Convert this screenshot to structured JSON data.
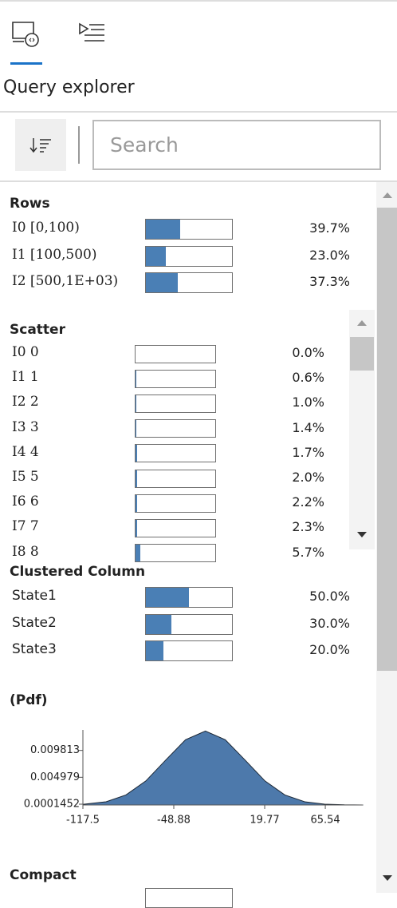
{
  "header": {
    "title": "Query explorer"
  },
  "search": {
    "placeholder": "Search"
  },
  "sections": [
    {
      "title": "Rows",
      "items": [
        {
          "label": "I0 [0,100)",
          "value": 39.7,
          "value_label": "39.7%"
        },
        {
          "label": "I1 [100,500)",
          "value": 23.0,
          "value_label": "23.0%"
        },
        {
          "label": "I2 [500,1E+03)",
          "value": 37.3,
          "value_label": "37.3%"
        }
      ]
    },
    {
      "title": "Scatter",
      "items": [
        {
          "label": "I0 0",
          "value": 0.0,
          "value_label": "0.0%"
        },
        {
          "label": "I1 1",
          "value": 0.6,
          "value_label": "0.6%"
        },
        {
          "label": "I2 2",
          "value": 1.0,
          "value_label": "1.0%"
        },
        {
          "label": "I3 3",
          "value": 1.4,
          "value_label": "1.4%"
        },
        {
          "label": "I4 4",
          "value": 1.7,
          "value_label": "1.7%"
        },
        {
          "label": "I5 5",
          "value": 2.0,
          "value_label": "2.0%"
        },
        {
          "label": "I6 6",
          "value": 2.2,
          "value_label": "2.2%"
        },
        {
          "label": "I7 7",
          "value": 2.3,
          "value_label": "2.3%"
        },
        {
          "label": "I8 8",
          "value": 5.7,
          "value_label": "5.7%"
        }
      ]
    },
    {
      "title": "Clustered Column",
      "items": [
        {
          "label": "State1",
          "value": 50.0,
          "value_label": "50.0%"
        },
        {
          "label": "State2",
          "value": 30.0,
          "value_label": "30.0%"
        },
        {
          "label": "State3",
          "value": 20.0,
          "value_label": "20.0%"
        }
      ]
    }
  ],
  "pdf_chart": {
    "type": "area",
    "title": "(Pdf)",
    "color": "#4d79ab",
    "x": [
      -117.5,
      -100,
      -85,
      -70,
      -55,
      -40,
      -25,
      -10,
      5,
      20,
      35,
      50,
      65,
      80,
      93.8
    ],
    "values": [
      0.000115,
      0.00058,
      0.0018,
      0.00432,
      0.00807,
      0.01174,
      0.0133,
      0.01174,
      0.00807,
      0.00432,
      0.0018,
      0.00058,
      0.000148,
      2.9e-05,
      5.2e-06
    ],
    "xlim": [
      -117.5,
      93.8
    ],
    "ylim": [
      0,
      0.0135
    ],
    "xticks": [
      -117.5,
      -48.88,
      19.77,
      65.54
    ],
    "yticks": [
      0.0001452,
      0.004979,
      0.009813
    ]
  },
  "compact": {
    "title": "Compact"
  }
}
